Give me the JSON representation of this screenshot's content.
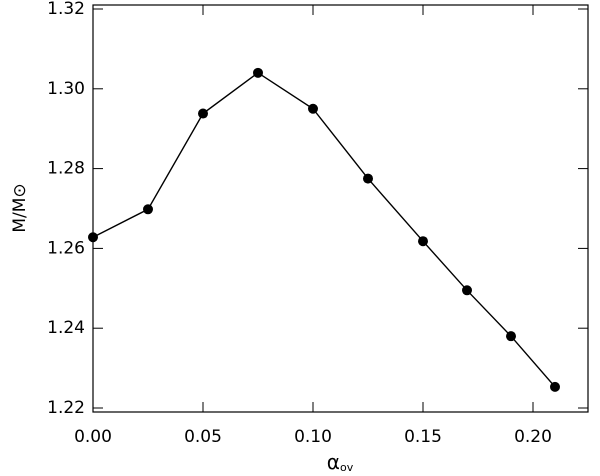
{
  "chart_data": {
    "type": "line",
    "xlabel": "α",
    "xlabel_subscript": "ov",
    "ylabel": "M/M⊙",
    "x": [
      0,
      0.025,
      0.05,
      0.075,
      0.1,
      0.125,
      0.15,
      0.17,
      0.19,
      0.21
    ],
    "series": [
      {
        "color": "#000000",
        "values": [
          1.2628,
          1.2698,
          1.2938,
          1.304,
          1.295,
          1.2775,
          1.2618,
          1.2495,
          1.238,
          1.2253
        ]
      }
    ],
    "xlim": [
      0,
      0.225
    ],
    "ylim": [
      1.219,
      1.321
    ],
    "xticks": [
      {
        "value": 0,
        "label": "0.00"
      },
      0.05,
      {
        "value": 0.1,
        "label": "0.10"
      },
      0.15,
      {
        "value": 0.2,
        "label": "0.20"
      }
    ],
    "yticks": [
      1.22,
      1.24,
      1.26,
      1.28,
      {
        "value": 1.3,
        "label": "1.30"
      },
      1.32
    ],
    "markers": true
  }
}
